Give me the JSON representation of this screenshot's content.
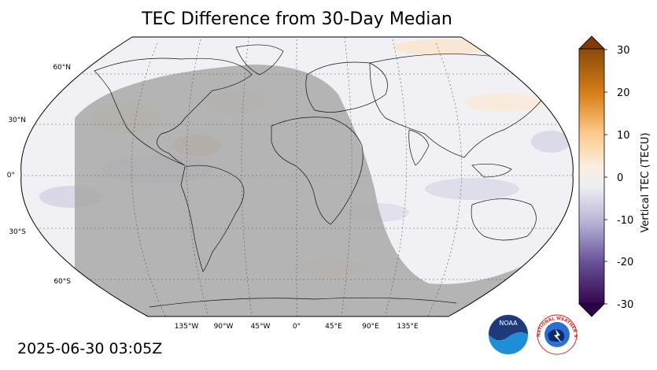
{
  "title": "TEC Difference from 30-Day Median",
  "timestamp": "2025-06-30 03:05Z",
  "map": {
    "projection": "robinson",
    "graticule": "dashed",
    "night_shading": "gray",
    "lat_labels": [
      "60°N",
      "30°N",
      "0°",
      "30°S",
      "60°S"
    ],
    "lon_labels": [
      "135°W",
      "90°W",
      "45°W",
      "0°",
      "45°E",
      "90°E",
      "135°E"
    ]
  },
  "colorbar": {
    "label": "Vertical TEC (TECU)",
    "ticks": [
      "30",
      "20",
      "10",
      "0",
      "-10",
      "-20",
      "-30"
    ],
    "range": [
      -30,
      30
    ],
    "colormap": "purple-white-orange",
    "high_color": "#7f3b08",
    "low_color": "#2d004b"
  },
  "logos": {
    "noaa": "NOAA",
    "nws": "NATIONAL WEATHER SERVICE"
  }
}
